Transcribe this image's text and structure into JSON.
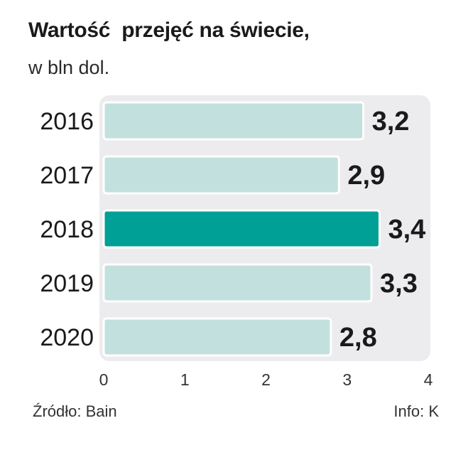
{
  "title": "Wartość  przejęć na świecie,",
  "subtitle": "w bln dol.",
  "source": "Źródło: Bain",
  "credit": "Info: K",
  "colors": {
    "bar": "#c2e1de",
    "bar_highlight": "#00a096",
    "bar_stroke": "#ffffff",
    "plot_background": "#ecebee",
    "text": "#1a1a1a"
  },
  "chart_data": {
    "type": "bar",
    "orientation": "horizontal",
    "categories": [
      "2016",
      "2017",
      "2018",
      "2019",
      "2020"
    ],
    "values": [
      3.2,
      2.9,
      3.4,
      3.3,
      2.8
    ],
    "value_labels": [
      "3,2",
      "2,9",
      "3,4",
      "3,3",
      "2,8"
    ],
    "highlight": "2018",
    "xlim": [
      0,
      4
    ],
    "x_ticks": [
      "0",
      "1",
      "2",
      "3",
      "4"
    ],
    "grid": false
  }
}
